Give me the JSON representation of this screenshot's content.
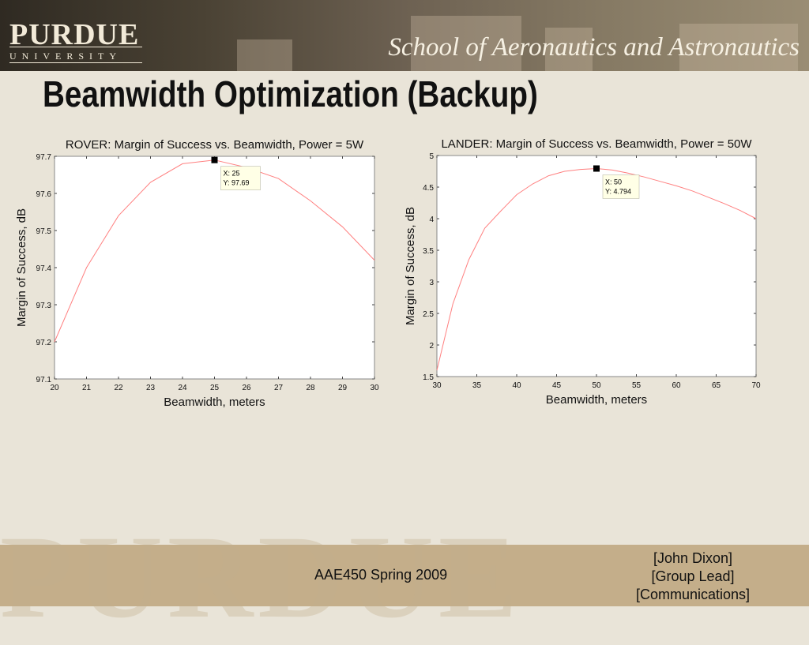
{
  "header": {
    "logo_word": "PURDUE",
    "logo_sub": "UNIVERSITY",
    "school": "School of Aeronautics and Astronautics"
  },
  "page": {
    "title": "Beamwidth Optimization (Backup)"
  },
  "footer": {
    "course": "AAE450 Spring 2009",
    "name": "[John Dixon]",
    "role": "[Group Lead]",
    "team": "[Communications]"
  },
  "chart_data": [
    {
      "type": "line",
      "title": "ROVER: Margin of Success vs. Beamwidth, Power = 5W",
      "xlabel": "Beamwidth, meters",
      "ylabel": "Margin of Success, dB",
      "xlim": [
        20,
        30
      ],
      "ylim": [
        97.1,
        97.7
      ],
      "xticks": [
        "20",
        "21",
        "22",
        "23",
        "24",
        "25",
        "26",
        "27",
        "28",
        "29",
        "30"
      ],
      "yticks": [
        "97.1",
        "97.2",
        "97.3",
        "97.4",
        "97.5",
        "97.6",
        "97.7"
      ],
      "line_color": "#ff8080",
      "series": [
        {
          "x": [
            20,
            21,
            22,
            23,
            24,
            25,
            26,
            27,
            28,
            29,
            30
          ],
          "y": [
            97.2,
            97.4,
            97.54,
            97.63,
            97.68,
            97.69,
            97.67,
            97.64,
            97.58,
            97.51,
            97.42
          ]
        }
      ],
      "datatip": {
        "x": 25,
        "y": 97.69,
        "label_x": "X: 25",
        "label_y": "Y: 97.69"
      }
    },
    {
      "type": "line",
      "title": "LANDER: Margin of Success vs. Beamwidth, Power = 50W",
      "xlabel": "Beamwidth, meters",
      "ylabel": "Margin of Success, dB",
      "xlim": [
        30,
        70
      ],
      "ylim": [
        1.5,
        5
      ],
      "xticks": [
        "30",
        "35",
        "40",
        "45",
        "50",
        "55",
        "60",
        "65",
        "70"
      ],
      "yticks": [
        "1.5",
        "2",
        "2.5",
        "3",
        "3.5",
        "4",
        "4.5",
        "5"
      ],
      "line_color": "#ff8080",
      "series": [
        {
          "x": [
            30,
            32,
            34,
            36,
            38,
            40,
            42,
            44,
            46,
            48,
            50,
            52,
            54,
            56,
            58,
            60,
            62,
            64,
            66,
            68,
            70
          ],
          "y": [
            1.6,
            2.65,
            3.35,
            3.85,
            4.12,
            4.38,
            4.55,
            4.68,
            4.75,
            4.78,
            4.794,
            4.77,
            4.72,
            4.66,
            4.59,
            4.52,
            4.44,
            4.34,
            4.24,
            4.13,
            4.0
          ]
        }
      ],
      "datatip": {
        "x": 50,
        "y": 4.794,
        "label_x": "X: 50",
        "label_y": "Y: 4.794"
      }
    }
  ]
}
